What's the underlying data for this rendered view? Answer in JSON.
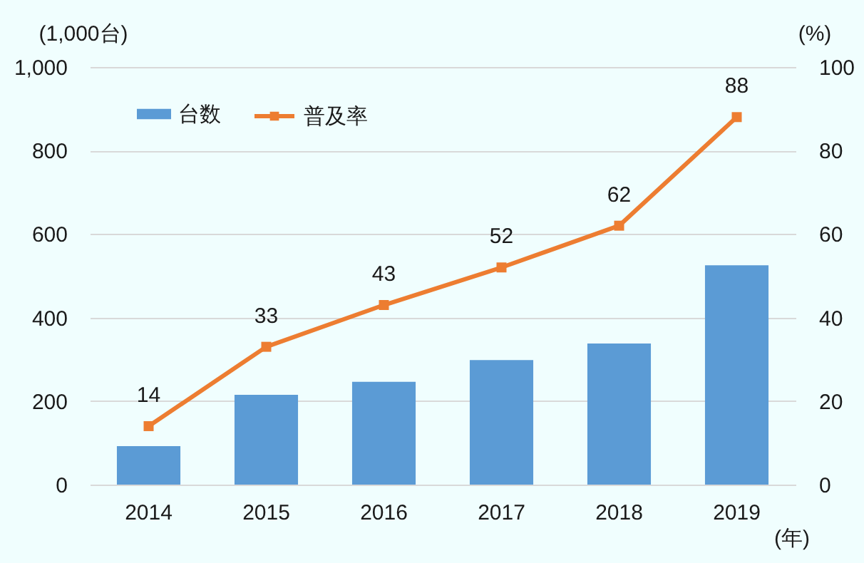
{
  "chart_data": {
    "type": "bar",
    "categories": [
      "2014",
      "2015",
      "2016",
      "2017",
      "2018",
      "2019"
    ],
    "xlabel": "(年)",
    "ylabel": "(1,000台)",
    "y2label": "(%)",
    "ylim": [
      0,
      1000
    ],
    "yticks": [
      0,
      200,
      400,
      600,
      800,
      {
        "value": 1000,
        "label": "1,000"
      }
    ],
    "y2lim": [
      0,
      100
    ],
    "y2ticks": [
      0,
      20,
      40,
      60,
      80,
      100
    ],
    "grid": "y",
    "legend": "top left",
    "series": [
      {
        "name": "台数",
        "color": "#5b9bd5",
        "values": [
          92,
          215,
          246,
          298,
          338,
          525
        ]
      },
      {
        "name": "普及率",
        "type": "line",
        "axis": "y2",
        "color": "#ed7d31",
        "marker": "square",
        "values": [
          14,
          33,
          43,
          52,
          62,
          88
        ],
        "value_labels": [
          "14",
          "33",
          "43",
          "52",
          "62",
          "88"
        ]
      }
    ]
  }
}
